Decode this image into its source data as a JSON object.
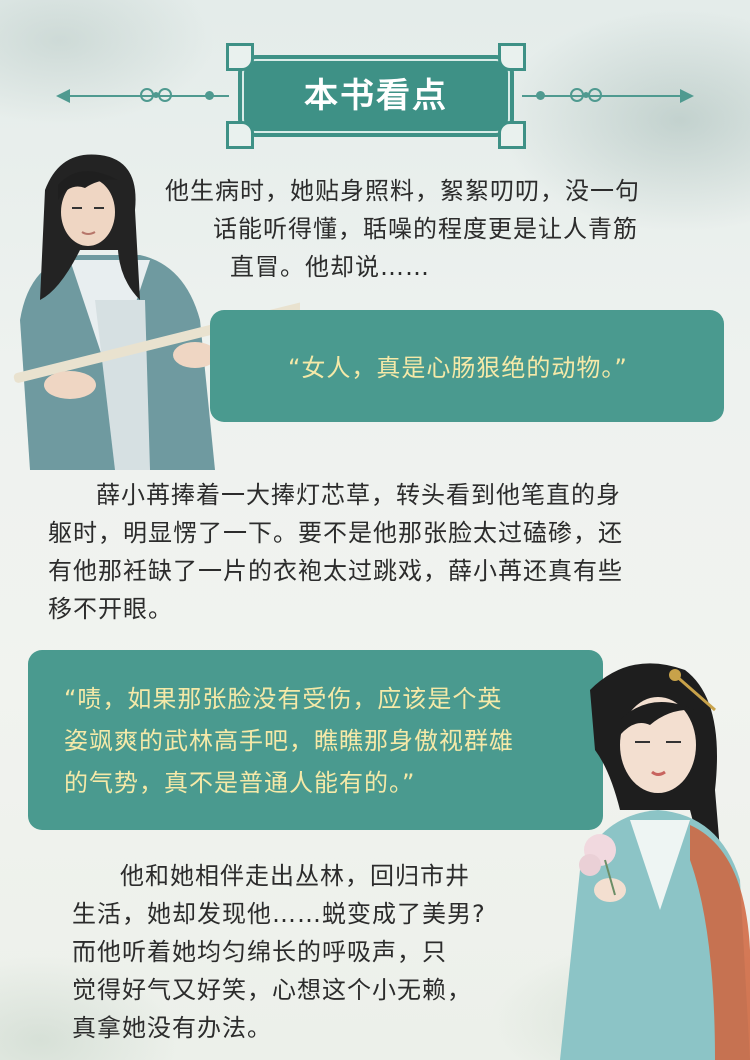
{
  "header": {
    "title": "本书看点"
  },
  "passages": [
    {
      "lines": [
        "他生病时，她贴身照料，絮絮叨叨，没一句",
        "话能听得懂，聒噪的程度更是让人青筋",
        "直冒。他却说……"
      ]
    },
    {
      "lines": [
        "“女人，真是心肠狠绝的动物。”"
      ]
    },
    {
      "lines": [
        "薛小苒捧着一大捧灯芯草，转头看到他笔直的身",
        "躯时，明显愣了一下。要不是他那张脸太过磕碜，还",
        "有他那衽缺了一片的衣袍太过跳戏，薛小苒还真有些",
        "移不开眼。"
      ]
    },
    {
      "lines": [
        "“啧，如果那张脸没有受伤，应该是个英",
        "姿飒爽的武林高手吧，瞧瞧那身傲视群雄",
        "的气势，真不是普通人能有的。”"
      ]
    },
    {
      "lines": [
        "他和她相伴走出丛林，回归市井",
        "生活，她却发现他……蜕变成了美男?",
        "而他听着她均匀绵长的呼吸声，只",
        "觉得好气又好笑，心想这个小无赖，",
        "真拿她没有办法。"
      ]
    }
  ],
  "colors": {
    "teal": "#4a9a8f",
    "quote_text": "#f5e9a8",
    "body_text": "#2c2c2c"
  },
  "figures": {
    "male": "male-character-with-flute",
    "female": "female-character-with-hairpin"
  }
}
